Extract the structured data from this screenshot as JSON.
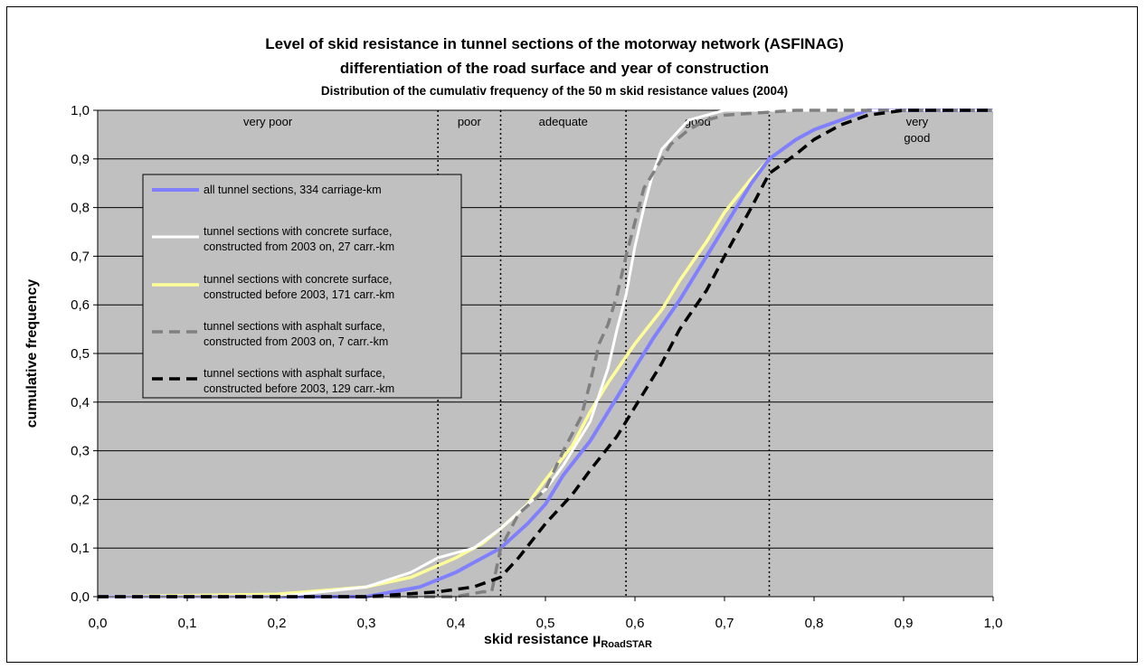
{
  "chart_data": {
    "type": "line",
    "title": "Level of skid resistance in tunnel sections of the motorway network (ASFINAG)",
    "subtitle": "differentiation of the road surface and year of construction",
    "subtitle2": "Distribution of the cumulativ frequency of the 50 m skid resistance values (2004)",
    "xlabel_main": "skid resistance µ",
    "xlabel_sub": "RoadSTAR",
    "ylabel": "cumulative frequency",
    "xlim": [
      0.0,
      1.0
    ],
    "ylim": [
      0.0,
      1.0
    ],
    "x_ticks": [
      "0,0",
      "0,1",
      "0,2",
      "0,3",
      "0,4",
      "0,5",
      "0,6",
      "0,7",
      "0,8",
      "0,9",
      "1,0"
    ],
    "y_ticks": [
      "0,0",
      "0,1",
      "0,2",
      "0,3",
      "0,4",
      "0,5",
      "0,6",
      "0,7",
      "0,8",
      "0,9",
      "1,0"
    ],
    "grid": true,
    "plot_background": "#c0c0c0",
    "thresholds": [
      0.38,
      0.45,
      0.59,
      0.75
    ],
    "regions": [
      {
        "label": "very poor",
        "x": 0.19
      },
      {
        "label": "poor",
        "x": 0.415
      },
      {
        "label": "adequate",
        "x": 0.52
      },
      {
        "label": "good",
        "x": 0.67
      },
      {
        "label": "very",
        "x": 0.915
      },
      {
        "label": "good",
        "x": 0.915
      }
    ],
    "series": [
      {
        "name": "all tunnel sections, 334 carriage-km",
        "name2": "",
        "color": "#8080ff",
        "dash": "solid",
        "width": 4,
        "x": [
          0.0,
          0.3,
          0.33,
          0.36,
          0.4,
          0.42,
          0.45,
          0.48,
          0.5,
          0.52,
          0.55,
          0.57,
          0.6,
          0.62,
          0.65,
          0.68,
          0.7,
          0.73,
          0.75,
          0.78,
          0.8,
          0.83,
          0.86,
          1.0
        ],
        "y": [
          0.0,
          0.0,
          0.01,
          0.02,
          0.05,
          0.07,
          0.1,
          0.15,
          0.19,
          0.25,
          0.32,
          0.38,
          0.47,
          0.53,
          0.61,
          0.7,
          0.76,
          0.85,
          0.9,
          0.94,
          0.96,
          0.98,
          1.0,
          1.0
        ]
      },
      {
        "name": "tunnel sections with concrete surface,",
        "name2": "constructed from 2003 on, 27 carr.-km",
        "color": "#ffffff",
        "dash": "solid",
        "width": 3,
        "x": [
          0.0,
          0.2,
          0.3,
          0.35,
          0.38,
          0.4,
          0.42,
          0.45,
          0.48,
          0.5,
          0.52,
          0.55,
          0.57,
          0.58,
          0.59,
          0.6,
          0.61,
          0.62,
          0.63,
          0.65,
          0.66,
          0.68,
          0.7,
          1.0
        ],
        "y": [
          0.0,
          0.0,
          0.02,
          0.05,
          0.08,
          0.09,
          0.1,
          0.14,
          0.19,
          0.22,
          0.27,
          0.36,
          0.47,
          0.55,
          0.62,
          0.72,
          0.8,
          0.87,
          0.92,
          0.96,
          0.98,
          0.99,
          1.0,
          1.0
        ]
      },
      {
        "name": "tunnel sections with concrete surface,",
        "name2": "constructed before 2003, 171 carr.-km",
        "color": "#ffff99",
        "dash": "solid",
        "width": 3.5,
        "x": [
          0.0,
          0.2,
          0.3,
          0.35,
          0.4,
          0.43,
          0.45,
          0.48,
          0.5,
          0.53,
          0.55,
          0.57,
          0.6,
          0.63,
          0.65,
          0.68,
          0.7,
          0.73,
          0.75,
          0.78,
          0.8,
          0.83,
          0.86,
          0.95,
          1.0
        ],
        "y": [
          0.0,
          0.005,
          0.02,
          0.04,
          0.08,
          0.11,
          0.14,
          0.19,
          0.24,
          0.31,
          0.38,
          0.44,
          0.52,
          0.59,
          0.65,
          0.73,
          0.79,
          0.86,
          0.9,
          0.94,
          0.96,
          0.98,
          1.0,
          1.0,
          1.0
        ]
      },
      {
        "name": "tunnel sections with asphalt surface,",
        "name2": "constructed from 2003 on, 7 carr.-km",
        "color": "#808080",
        "dash": "dashed",
        "width": 3.5,
        "x": [
          0.0,
          0.4,
          0.43,
          0.44,
          0.45,
          0.47,
          0.5,
          0.52,
          0.54,
          0.55,
          0.56,
          0.57,
          0.58,
          0.59,
          0.6,
          0.61,
          0.62,
          0.63,
          0.64,
          0.66,
          0.68,
          0.7,
          0.78,
          1.0
        ],
        "y": [
          0.0,
          0.0,
          0.01,
          0.01,
          0.1,
          0.17,
          0.22,
          0.3,
          0.37,
          0.44,
          0.52,
          0.56,
          0.62,
          0.7,
          0.77,
          0.84,
          0.87,
          0.9,
          0.93,
          0.96,
          0.98,
          0.99,
          1.0,
          1.0
        ]
      },
      {
        "name": "tunnel sections with asphalt surface,",
        "name2": "constructed before 2003, 129 carr.-km",
        "color": "#000000",
        "dash": "dashed",
        "width": 3.5,
        "x": [
          0.0,
          0.3,
          0.38,
          0.42,
          0.45,
          0.47,
          0.5,
          0.53,
          0.55,
          0.58,
          0.6,
          0.63,
          0.65,
          0.68,
          0.7,
          0.73,
          0.75,
          0.78,
          0.8,
          0.83,
          0.86,
          0.9,
          1.0
        ],
        "y": [
          0.0,
          0.0,
          0.01,
          0.02,
          0.04,
          0.08,
          0.15,
          0.21,
          0.26,
          0.33,
          0.39,
          0.48,
          0.55,
          0.63,
          0.7,
          0.8,
          0.87,
          0.91,
          0.94,
          0.97,
          0.99,
          1.0,
          1.0
        ]
      }
    ]
  }
}
